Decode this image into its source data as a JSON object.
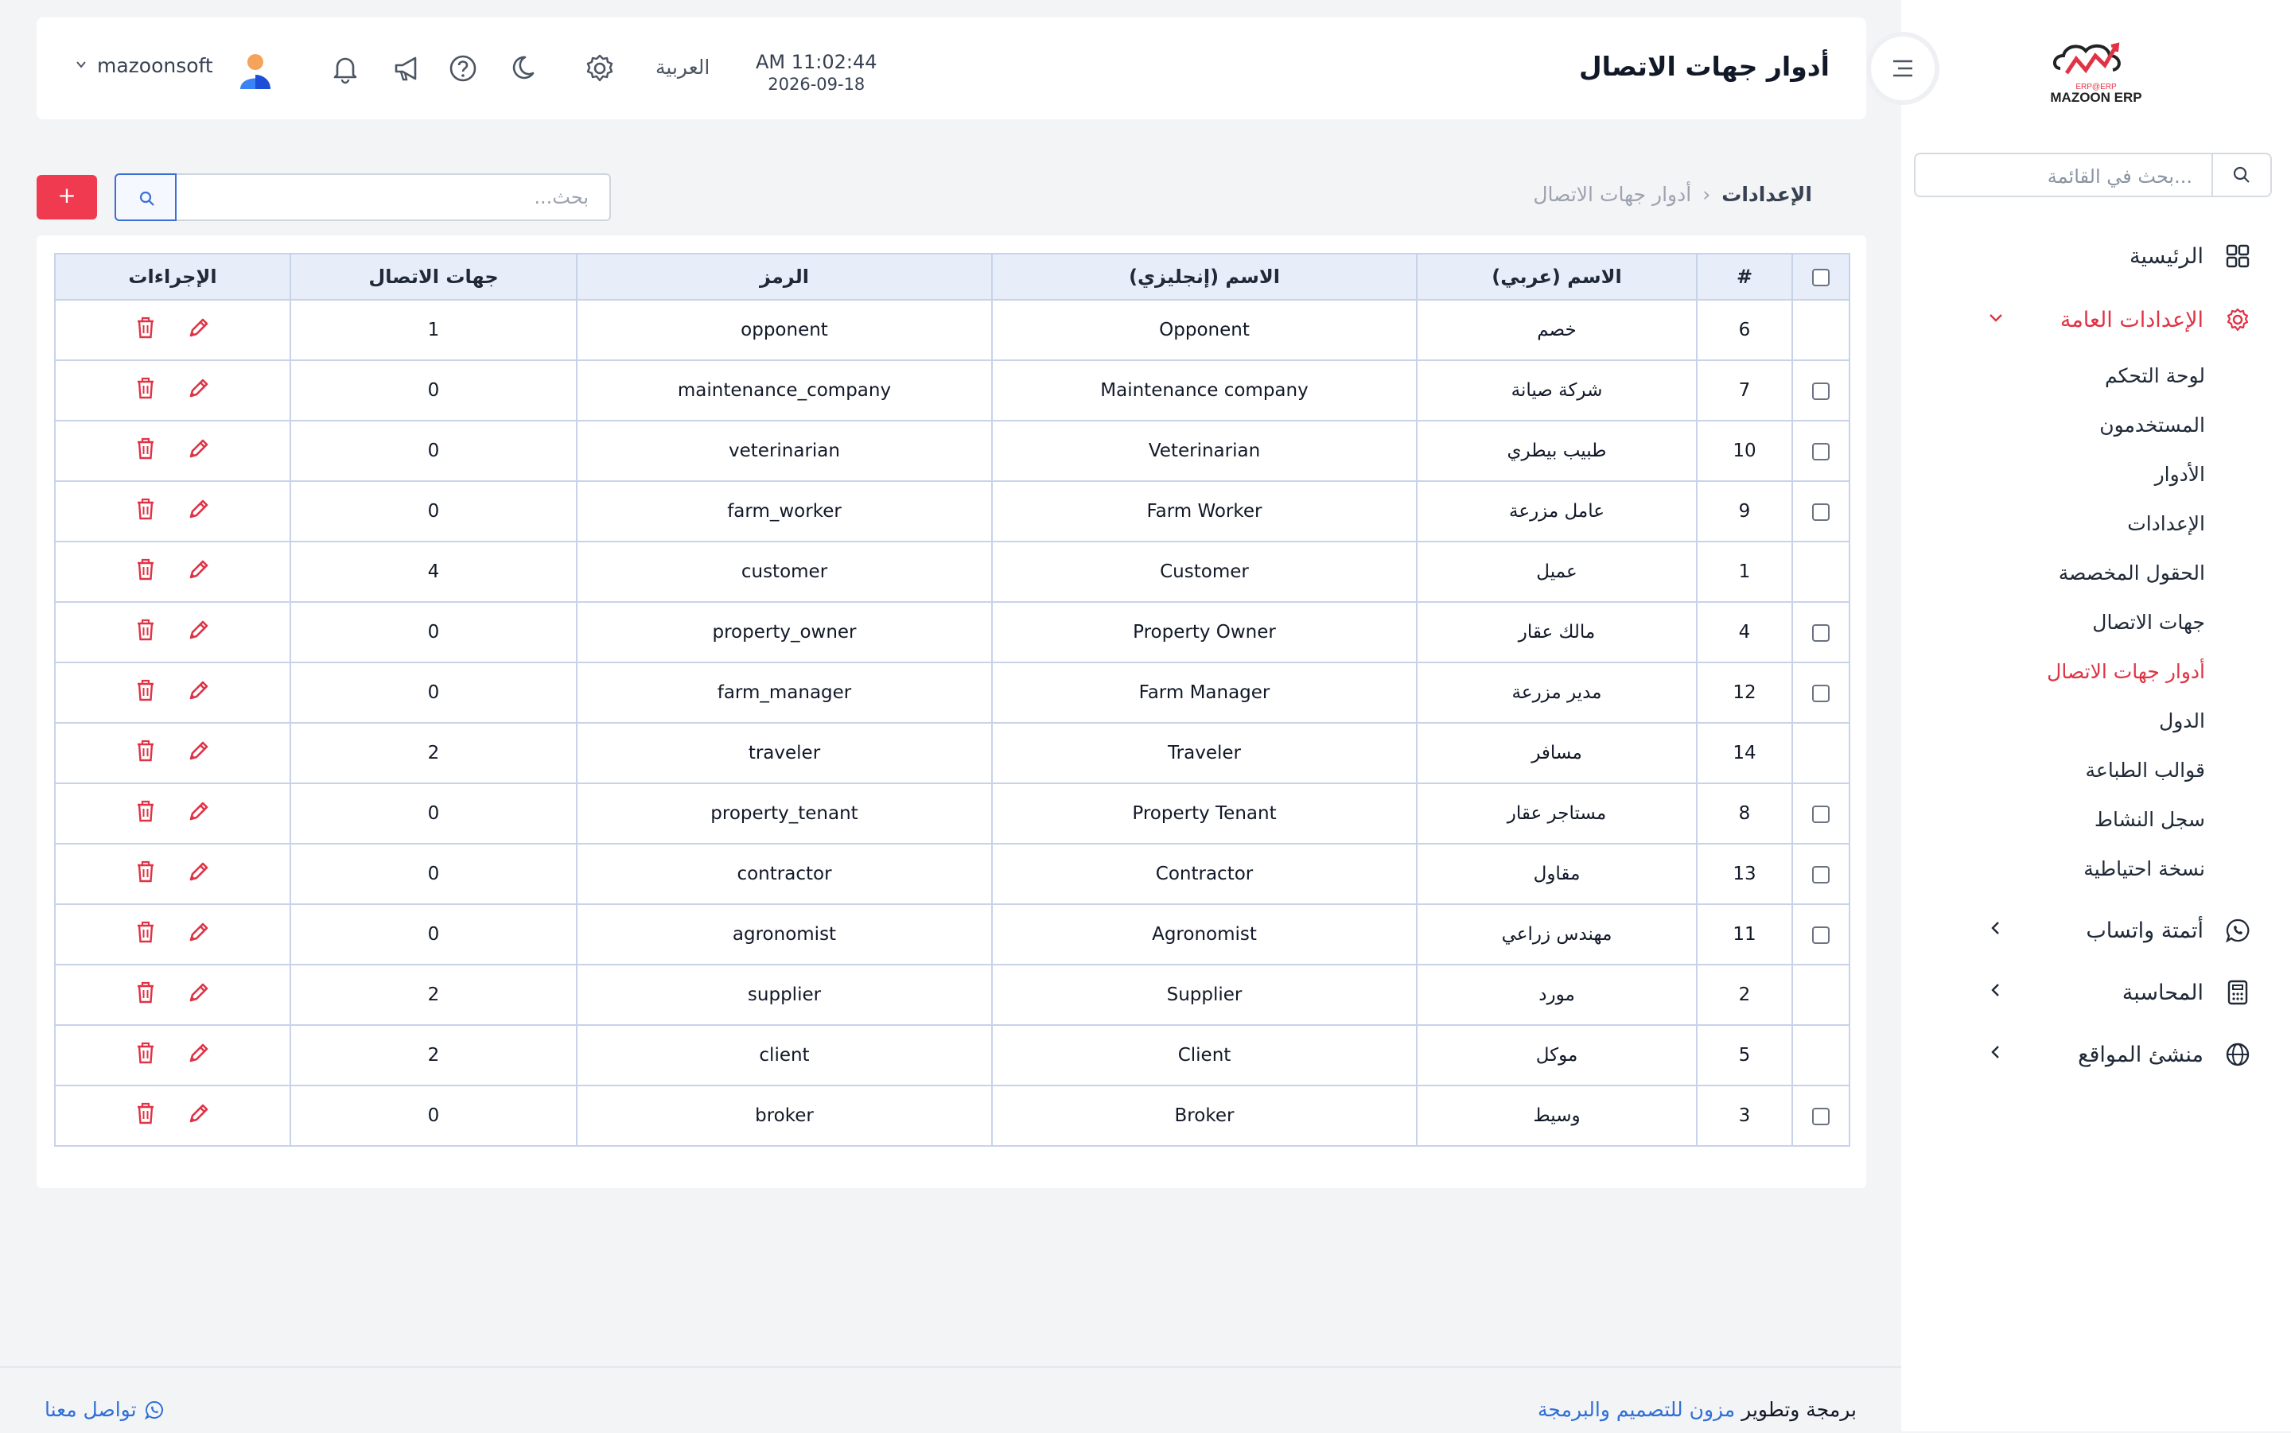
{
  "brand": {
    "logo_text": "MAZOON ERP",
    "logo_sub": "ERP@ERP",
    "accent": "#e03345"
  },
  "sidebar": {
    "search_placeholder": "بحث في القائمة...",
    "home": "الرئيسية",
    "general_settings": "الإعدادات العامة",
    "sub_items": [
      "لوحة التحكم",
      "المستخدمون",
      "الأدوار",
      "الإعدادات",
      "الحقول المخصصة",
      "جهات الاتصال",
      "أدوار جهات الاتصال",
      "الدول",
      "قوالب الطباعة",
      "سجل النشاط",
      "نسخة احتياطية"
    ],
    "whatsapp": "أتمتة واتساب",
    "accounting": "المحاسبة",
    "sites": "منشئ المواقع"
  },
  "header": {
    "title": "أدوار جهات الاتصال",
    "time": "AM 11:02:44",
    "date": "2026-09-18",
    "language": "العربية",
    "username": "mazoonsoft"
  },
  "toolbar": {
    "breadcrumb_root": "الإعدادات",
    "breadcrumb_current": "أدوار جهات الاتصال",
    "search_placeholder": "بحث...",
    "add_label": "+"
  },
  "table": {
    "headers": {
      "num": "#",
      "name_ar": "الاسم (عربي)",
      "name_en": "الاسم (إنجليزي)",
      "code": "الرمز",
      "contacts": "جهات الاتصال",
      "actions": "الإجراءات"
    },
    "rows": [
      {
        "checkbox": false,
        "num": "6",
        "name_ar": "خصم",
        "name_en": "Opponent",
        "code": "opponent",
        "contacts": "1"
      },
      {
        "checkbox": true,
        "num": "7",
        "name_ar": "شركة صيانة",
        "name_en": "Maintenance company",
        "code": "maintenance_company",
        "contacts": "0"
      },
      {
        "checkbox": true,
        "num": "10",
        "name_ar": "طبيب بيطري",
        "name_en": "Veterinarian",
        "code": "veterinarian",
        "contacts": "0"
      },
      {
        "checkbox": true,
        "num": "9",
        "name_ar": "عامل مزرعة",
        "name_en": "Farm Worker",
        "code": "farm_worker",
        "contacts": "0"
      },
      {
        "checkbox": false,
        "num": "1",
        "name_ar": "عميل",
        "name_en": "Customer",
        "code": "customer",
        "contacts": "4"
      },
      {
        "checkbox": true,
        "num": "4",
        "name_ar": "مالك عقار",
        "name_en": "Property Owner",
        "code": "property_owner",
        "contacts": "0"
      },
      {
        "checkbox": true,
        "num": "12",
        "name_ar": "مدير مزرعة",
        "name_en": "Farm Manager",
        "code": "farm_manager",
        "contacts": "0"
      },
      {
        "checkbox": false,
        "num": "14",
        "name_ar": "مسافر",
        "name_en": "Traveler",
        "code": "traveler",
        "contacts": "2"
      },
      {
        "checkbox": true,
        "num": "8",
        "name_ar": "مستاجر عقار",
        "name_en": "Property Tenant",
        "code": "property_tenant",
        "contacts": "0"
      },
      {
        "checkbox": true,
        "num": "13",
        "name_ar": "مقاول",
        "name_en": "Contractor",
        "code": "contractor",
        "contacts": "0"
      },
      {
        "checkbox": true,
        "num": "11",
        "name_ar": "مهندس زراعي",
        "name_en": "Agronomist",
        "code": "agronomist",
        "contacts": "0"
      },
      {
        "checkbox": false,
        "num": "2",
        "name_ar": "مورد",
        "name_en": "Supplier",
        "code": "supplier",
        "contacts": "2"
      },
      {
        "checkbox": false,
        "num": "5",
        "name_ar": "موكل",
        "name_en": "Client",
        "code": "client",
        "contacts": "2"
      },
      {
        "checkbox": true,
        "num": "3",
        "name_ar": "وسيط",
        "name_en": "Broker",
        "code": "broker",
        "contacts": "0"
      }
    ]
  },
  "footer": {
    "credit_prefix": "برمجة وتطوير",
    "credit_link": "مزون للتصميم والبرمجة",
    "contact": "تواصل معنا"
  }
}
